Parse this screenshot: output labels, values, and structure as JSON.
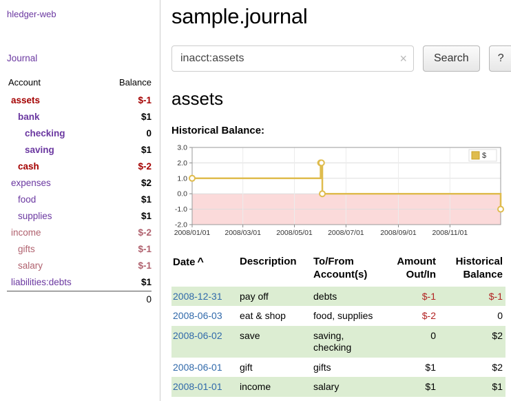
{
  "colors": {
    "link-purple": "#6a37a0",
    "neg-strong": "#a40000",
    "neg-soft": "#b0616e",
    "date-blue": "#3069aa",
    "amount-red": "#b22222",
    "row-green": "#dcedd2",
    "chart-line": "#dfbc4e",
    "chart-line-dark": "#c9a227",
    "chart-neg-fill": "#fbdada"
  },
  "sidebar": {
    "app_title": "hledger-web",
    "nav": {
      "journal": "Journal"
    },
    "accounts_table": {
      "headers": {
        "account": "Account",
        "balance": "Balance"
      },
      "rows": [
        {
          "account": "assets",
          "balance": "$-1"
        },
        {
          "account": "bank",
          "balance": "$1"
        },
        {
          "account": "checking",
          "balance": "0"
        },
        {
          "account": "saving",
          "balance": "$1"
        },
        {
          "account": "cash",
          "balance": "$-2"
        },
        {
          "account": "expenses",
          "balance": "$2"
        },
        {
          "account": "food",
          "balance": "$1"
        },
        {
          "account": "supplies",
          "balance": "$1"
        },
        {
          "account": "income",
          "balance": "$-2"
        },
        {
          "account": "gifts",
          "balance": "$-1"
        },
        {
          "account": "salary",
          "balance": "$-1"
        },
        {
          "account": "liabilities:debts",
          "balance": "$1"
        }
      ],
      "total": "0"
    }
  },
  "main": {
    "title": "sample.journal",
    "search": {
      "value": "inacct:assets",
      "button_label": "Search",
      "help_label": "?"
    },
    "heading": "assets",
    "chart_title": "Historical Balance:",
    "chart_data": {
      "type": "line",
      "step": true,
      "legend": "$",
      "legend_position": "top-right",
      "ylim": [
        -2.0,
        3.0
      ],
      "yticks": [
        "3.0",
        "2.0",
        "1.0",
        "0.0",
        "-1.0",
        "-2.0"
      ],
      "xrange": [
        "2008-01-01",
        "2008-12-31"
      ],
      "xticks": [
        "2008/01/01",
        "2008/03/01",
        "2008/05/01",
        "2008/07/01",
        "2008/09/01",
        "2008/11/01"
      ],
      "series": [
        {
          "name": "$",
          "points": [
            [
              "2008-01-01",
              1
            ],
            [
              "2008-06-01",
              2
            ],
            [
              "2008-06-02",
              2
            ],
            [
              "2008-06-03",
              0
            ],
            [
              "2008-12-31",
              -1
            ]
          ]
        }
      ]
    },
    "register": {
      "headers": {
        "date": "Date",
        "description": "Description",
        "accounts": "To/From\nAccount(s)",
        "amount": "Amount\nOut/In",
        "balance": "Historical\nBalance"
      },
      "rows": [
        {
          "date": "2008-12-31",
          "description": "pay off",
          "accounts": "debts",
          "amount": "$-1",
          "balance": "$-1"
        },
        {
          "date": "2008-06-03",
          "description": "eat & shop",
          "accounts": "food, supplies",
          "amount": "$-2",
          "balance": "0"
        },
        {
          "date": "2008-06-02",
          "description": "save",
          "accounts": "saving, checking",
          "amount": "0",
          "balance": "$2"
        },
        {
          "date": "2008-06-01",
          "description": "gift",
          "accounts": "gifts",
          "amount": "$1",
          "balance": "$2"
        },
        {
          "date": "2008-01-01",
          "description": "income",
          "accounts": "salary",
          "amount": "$1",
          "balance": "$1"
        }
      ]
    }
  },
  "icons": {
    "clear": "×",
    "sort_asc": "^"
  }
}
